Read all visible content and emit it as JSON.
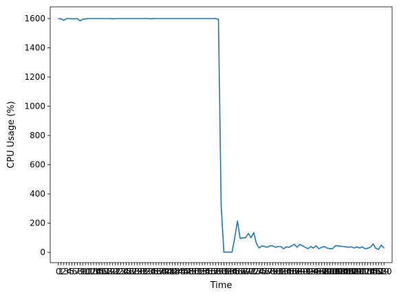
{
  "chart_data": {
    "type": "line",
    "title": "",
    "xlabel": "Time",
    "ylabel": "CPU Usage (%)",
    "ylim": [
      -70,
      1680
    ],
    "xlim": [
      -3,
      123
    ],
    "yticks": [
      0,
      200,
      400,
      600,
      800,
      1000,
      1200,
      1400,
      1600
    ],
    "xticks": [
      0,
      1,
      2,
      3,
      4,
      5,
      6,
      7,
      8,
      9,
      10,
      11,
      12,
      13,
      14,
      15,
      16,
      17,
      18,
      19,
      20,
      21,
      22,
      23,
      24,
      25,
      26,
      27,
      28,
      29,
      30,
      31,
      32,
      33,
      34,
      35,
      36,
      37,
      38,
      39,
      40,
      41,
      42,
      43,
      44,
      45,
      46,
      47,
      48,
      49,
      50,
      51,
      52,
      53,
      54,
      55,
      56,
      57,
      58,
      59,
      60,
      61,
      62,
      63,
      64,
      65,
      66,
      67,
      68,
      69,
      70,
      71,
      72,
      73,
      74,
      75,
      76,
      77,
      78,
      79,
      80,
      81,
      82,
      83,
      84,
      85,
      86,
      87,
      88,
      89,
      90,
      91,
      92,
      93,
      94,
      95,
      96,
      97,
      98,
      99,
      100,
      101,
      102,
      103,
      104,
      105,
      106,
      107,
      108,
      109,
      110,
      111,
      112,
      113,
      114,
      115,
      116,
      117,
      118,
      119,
      120
    ],
    "grid": false,
    "legend": "none",
    "color": "#1f77b4",
    "series": [
      {
        "x": [
          0,
          1,
          2,
          3,
          4,
          5,
          6,
          7,
          8,
          9,
          10,
          11,
          12,
          13,
          14,
          15,
          16,
          17,
          18,
          19,
          20,
          21,
          22,
          23,
          24,
          25,
          26,
          27,
          28,
          29,
          30,
          31,
          32,
          33,
          34,
          35,
          36,
          37,
          38,
          39,
          40,
          41,
          42,
          43,
          44,
          45,
          46,
          47,
          48,
          49,
          50,
          51,
          52,
          53,
          54,
          55,
          56,
          57,
          58,
          59,
          60,
          61,
          62,
          63,
          64,
          65,
          66,
          67,
          68,
          69,
          70,
          71,
          72,
          73,
          74,
          75,
          76,
          77,
          78,
          79,
          80,
          81,
          82,
          83,
          84,
          85,
          86,
          87,
          88,
          89,
          90,
          91,
          92,
          93,
          94,
          95,
          96,
          97,
          98,
          99,
          100,
          101,
          102,
          103,
          104,
          105,
          106,
          107,
          108,
          109,
          110,
          111,
          112,
          113,
          114,
          115,
          116,
          117,
          118,
          119,
          120
        ],
        "y": [
          1600,
          1598,
          1588,
          1600,
          1600,
          1598,
          1598,
          1600,
          1585,
          1594,
          1598,
          1600,
          1600,
          1600,
          1600,
          1600,
          1600,
          1600,
          1600,
          1600,
          1598,
          1600,
          1600,
          1600,
          1600,
          1600,
          1600,
          1600,
          1600,
          1600,
          1600,
          1600,
          1600,
          1600,
          1598,
          1600,
          1600,
          1600,
          1600,
          1600,
          1600,
          1600,
          1600,
          1600,
          1600,
          1600,
          1600,
          1600,
          1600,
          1600,
          1600,
          1600,
          1600,
          1600,
          1600,
          1600,
          1600,
          1600,
          1600,
          1595,
          320,
          2,
          2,
          2,
          2,
          100,
          215,
          95,
          100,
          100,
          130,
          100,
          135,
          60,
          30,
          45,
          40,
          35,
          45,
          45,
          35,
          40,
          40,
          25,
          38,
          35,
          45,
          55,
          35,
          55,
          45,
          35,
          25,
          40,
          30,
          45,
          25,
          35,
          40,
          30,
          25,
          25,
          45,
          45,
          42,
          40,
          38,
          35,
          38,
          30,
          38,
          30,
          38,
          25,
          28,
          35,
          58,
          28,
          20,
          50,
          30
        ]
      }
    ]
  }
}
